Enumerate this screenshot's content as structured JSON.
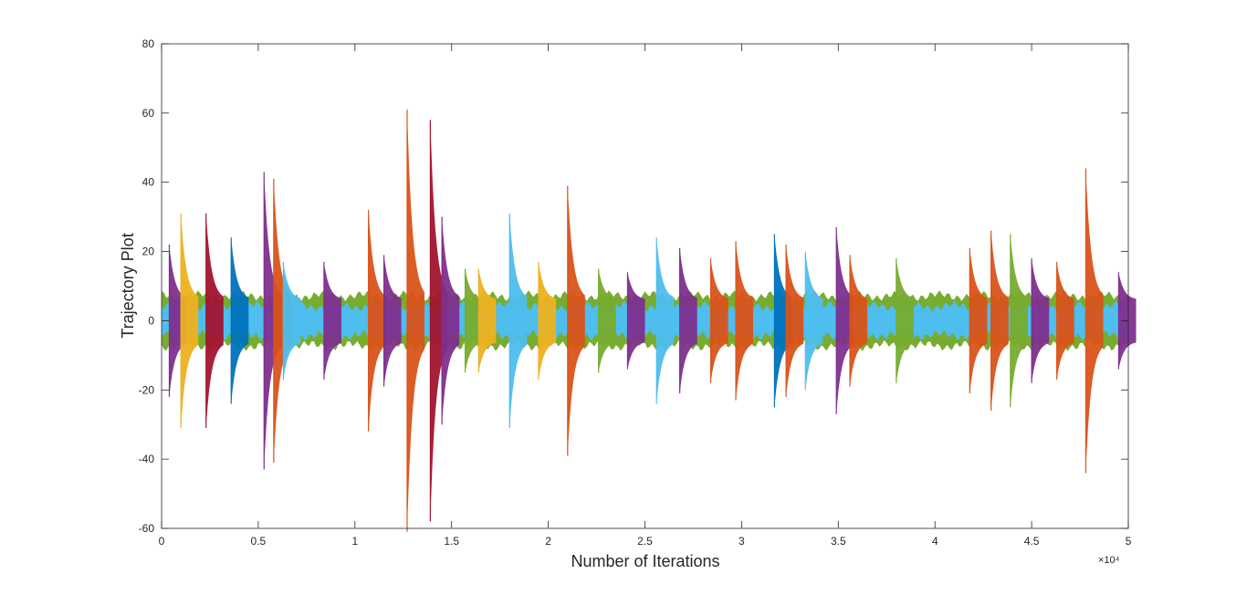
{
  "chart_data": {
    "type": "area",
    "title": "",
    "xlabel": "Number of Iterations",
    "ylabel": "Trajectory Plot",
    "xlim": [
      0,
      50000
    ],
    "ylim": [
      -60,
      80
    ],
    "x_ticks": [
      0,
      5000,
      10000,
      15000,
      20000,
      25000,
      30000,
      35000,
      40000,
      45000,
      50000
    ],
    "x_tick_labels": [
      "0",
      "0.5",
      "1",
      "1.5",
      "2",
      "2.5",
      "3",
      "3.5",
      "4",
      "4.5",
      "5"
    ],
    "x_exponent_label": "×10⁴",
    "y_ticks": [
      -60,
      -40,
      -20,
      0,
      20,
      40,
      60,
      80
    ],
    "y_tick_labels": [
      "-60",
      "-40",
      "-20",
      "0",
      "20",
      "40",
      "60",
      "80"
    ],
    "grid": false,
    "colors": [
      "#0072BD",
      "#D95319",
      "#EDB120",
      "#7E2F8E",
      "#77AC30",
      "#4DBEEE",
      "#A2142F"
    ],
    "baseline_band": {
      "upper": 6,
      "lower": -6
    },
    "spikes": [
      {
        "x": 400,
        "peak": 22,
        "color": "#7E2F8E"
      },
      {
        "x": 1000,
        "peak": 31,
        "color": "#EDB120"
      },
      {
        "x": 2300,
        "peak": 31,
        "color": "#A2142F"
      },
      {
        "x": 3600,
        "peak": 24,
        "color": "#0072BD"
      },
      {
        "x": 5300,
        "peak": 43,
        "color": "#7E2F8E"
      },
      {
        "x": 5800,
        "peak": 41,
        "color": "#D95319"
      },
      {
        "x": 6300,
        "peak": 17,
        "color": "#4DBEEE"
      },
      {
        "x": 8400,
        "peak": 17,
        "color": "#7E2F8E"
      },
      {
        "x": 10700,
        "peak": 32,
        "color": "#D95319"
      },
      {
        "x": 11500,
        "peak": 19,
        "color": "#7E2F8E"
      },
      {
        "x": 12700,
        "peak": 61,
        "color": "#D95319"
      },
      {
        "x": 13900,
        "peak": 58,
        "color": "#A2142F"
      },
      {
        "x": 14500,
        "peak": 30,
        "color": "#7E2F8E"
      },
      {
        "x": 15700,
        "peak": 15,
        "color": "#77AC30"
      },
      {
        "x": 16400,
        "peak": 15,
        "color": "#EDB120"
      },
      {
        "x": 18000,
        "peak": 31,
        "color": "#4DBEEE"
      },
      {
        "x": 19500,
        "peak": 17,
        "color": "#EDB120"
      },
      {
        "x": 21000,
        "peak": 39,
        "color": "#D95319"
      },
      {
        "x": 22600,
        "peak": 15,
        "color": "#77AC30"
      },
      {
        "x": 24100,
        "peak": 14,
        "color": "#7E2F8E"
      },
      {
        "x": 25600,
        "peak": 24,
        "color": "#4DBEEE"
      },
      {
        "x": 26800,
        "peak": 21,
        "color": "#7E2F8E"
      },
      {
        "x": 28400,
        "peak": 18,
        "color": "#D95319"
      },
      {
        "x": 29700,
        "peak": 23,
        "color": "#D95319"
      },
      {
        "x": 31700,
        "peak": 25,
        "color": "#0072BD"
      },
      {
        "x": 32300,
        "peak": 22,
        "color": "#D95319"
      },
      {
        "x": 33300,
        "peak": 20,
        "color": "#4DBEEE"
      },
      {
        "x": 34900,
        "peak": 27,
        "color": "#7E2F8E"
      },
      {
        "x": 35600,
        "peak": 19,
        "color": "#D95319"
      },
      {
        "x": 38000,
        "peak": 18,
        "color": "#77AC30"
      },
      {
        "x": 41800,
        "peak": 21,
        "color": "#D95319"
      },
      {
        "x": 42900,
        "peak": 26,
        "color": "#D95319"
      },
      {
        "x": 43900,
        "peak": 25,
        "color": "#77AC30"
      },
      {
        "x": 45000,
        "peak": 18,
        "color": "#7E2F8E"
      },
      {
        "x": 46300,
        "peak": 17,
        "color": "#D95319"
      },
      {
        "x": 47800,
        "peak": 44,
        "color": "#D95319"
      },
      {
        "x": 49500,
        "peak": 14,
        "color": "#7E2F8E"
      }
    ]
  }
}
